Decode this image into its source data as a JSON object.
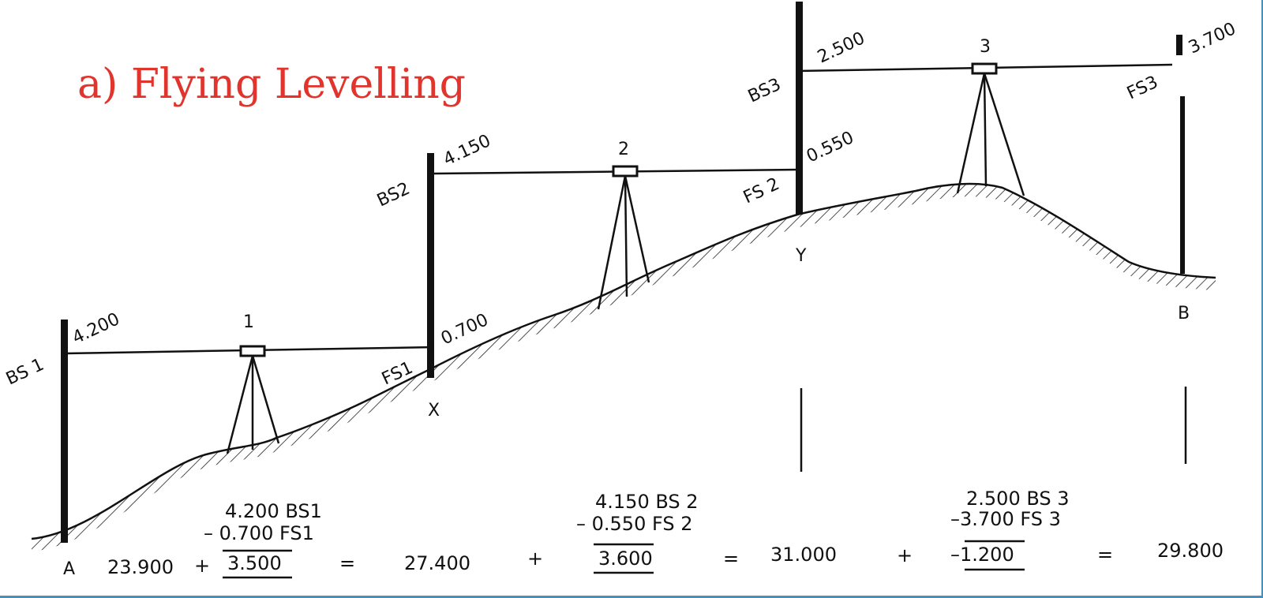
{
  "title": "a) Flying Levelling",
  "stations": {
    "s1": "1",
    "s2": "2",
    "s3": "3"
  },
  "points": {
    "a": "A",
    "x": "X",
    "y": "Y",
    "b": "B"
  },
  "sights": {
    "bs1_label": "BS 1",
    "bs1_value": "4.200",
    "fs1_label": "FS1",
    "fs1_value": "0.700",
    "bs2_label": "BS2",
    "bs2_value": "4.150",
    "fs2_label": "FS 2",
    "fs2_value": "0.550",
    "bs3_label": "BS3",
    "bs3_value": "2.500",
    "fs3_label": "FS3",
    "fs3_value": "3.700"
  },
  "calculation": {
    "start": "23.900",
    "plus1": "+",
    "step1_bs": "4.200  BS1",
    "step1_fs": "– 0.700  FS1",
    "step1_result": "3.500",
    "eq1": "=",
    "rl1": "27.400",
    "plus2": "+",
    "step2_bs": "4.150  BS 2",
    "step2_fs": "– 0.550  FS 2",
    "step2_result": "3.600",
    "eq2": "=",
    "rl2": "31.000",
    "plus3": "+",
    "step3_bs": "2.500  BS 3",
    "step3_fs": "–3.700  FS 3",
    "step3_result": "–1.200",
    "eq3": "=",
    "rl3": "29.800"
  }
}
